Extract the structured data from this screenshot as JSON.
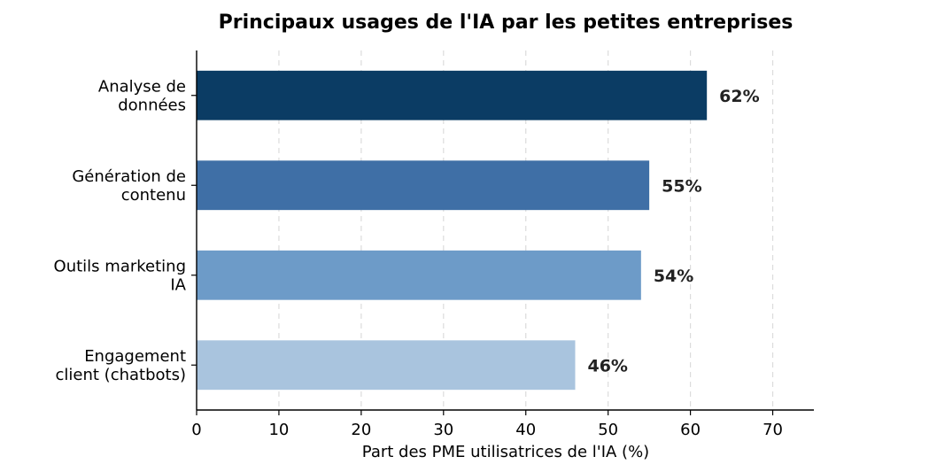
{
  "chart_data": {
    "type": "bar",
    "orientation": "horizontal",
    "title": "Principaux usages de l'IA par les petites entreprises",
    "xlabel": "Part des PME utilisatrices de l'IA (%)",
    "ylabel": "",
    "categories": [
      [
        "Analyse de",
        "données"
      ],
      [
        "Génération de",
        "contenu"
      ],
      [
        "Outils marketing",
        "IA"
      ],
      [
        "Engagement",
        "client (chatbots)"
      ]
    ],
    "values": [
      62,
      55,
      54,
      46
    ],
    "data_labels": [
      "62%",
      "55%",
      "54%",
      "46%"
    ],
    "colors": [
      "#0b3c64",
      "#3f6fa6",
      "#6d9bc8",
      "#a9c4de"
    ],
    "xlim": [
      0,
      75
    ],
    "xticks": [
      0,
      10,
      20,
      30,
      40,
      50,
      60,
      70
    ],
    "grid": "vertical dashed",
    "legend": "none"
  }
}
